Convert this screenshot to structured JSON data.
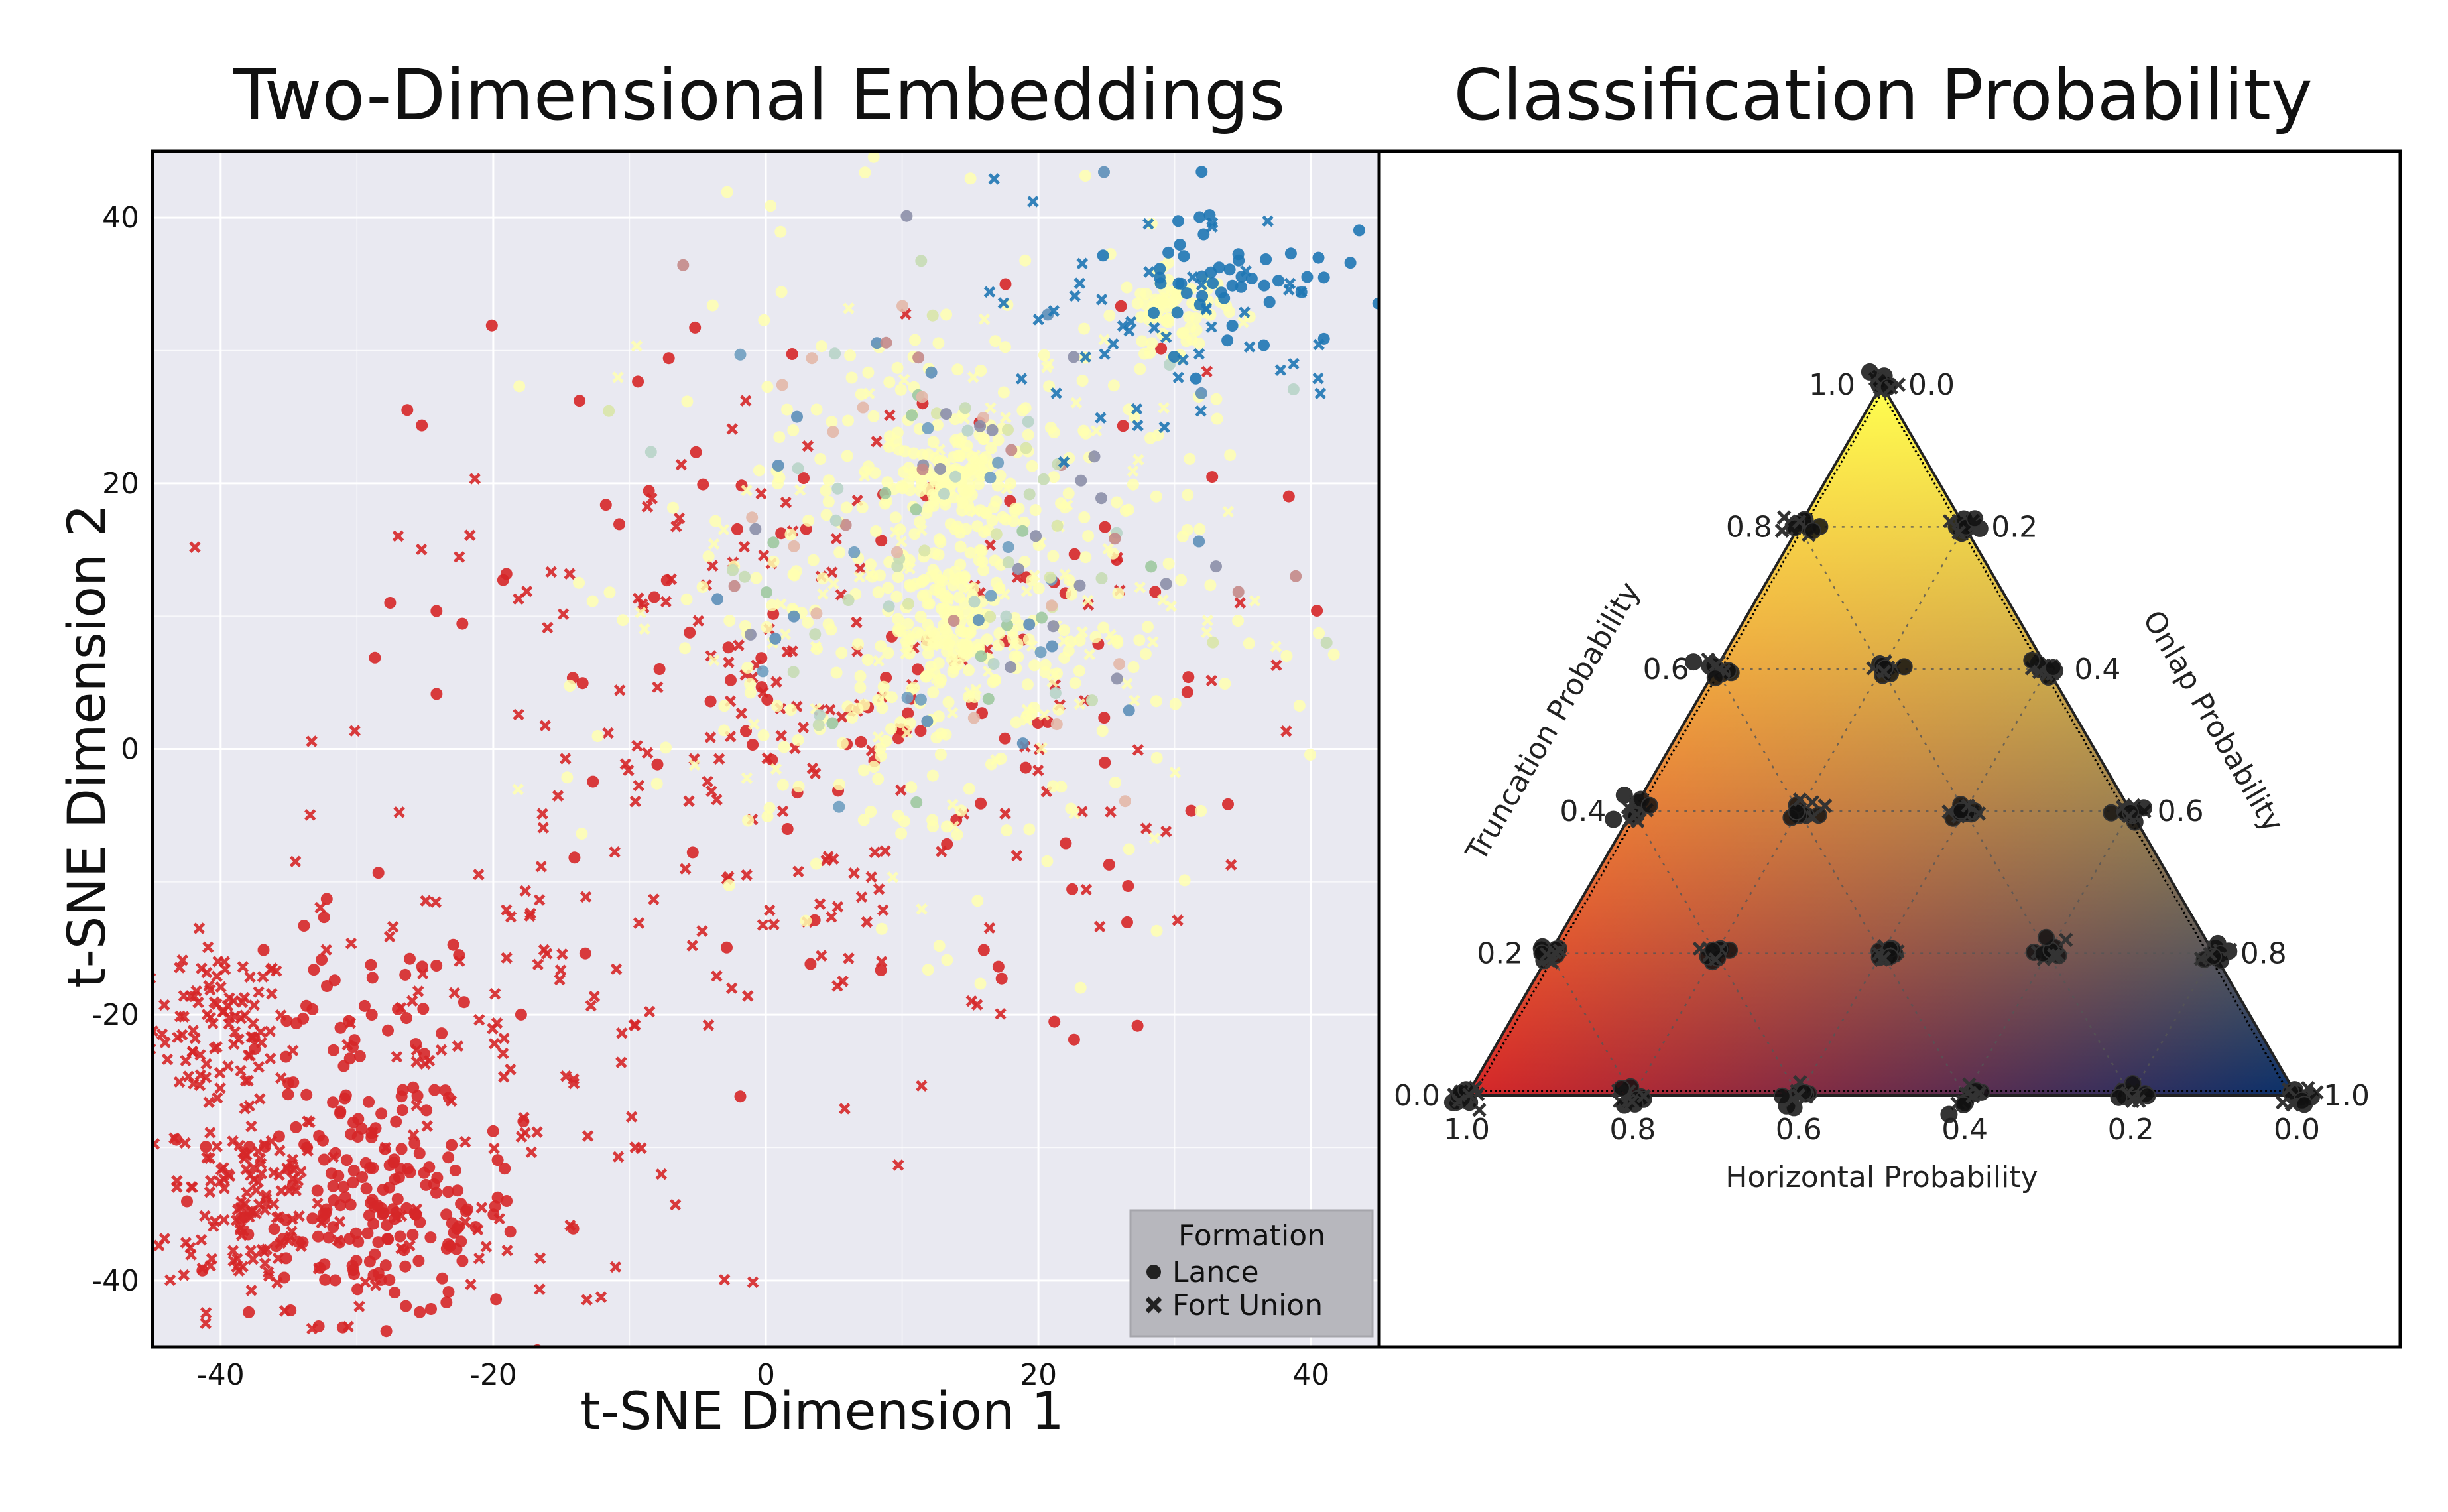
{
  "chart_data": [
    {
      "type": "scatter",
      "title": "Two-Dimensional Embeddings",
      "xlabel": "t-SNE Dimension 1",
      "ylabel": "t-SNE Dimension 2",
      "xlim": [
        -45,
        45
      ],
      "ylim": [
        -45,
        45
      ],
      "xticks": [
        -40,
        -20,
        0,
        20,
        40
      ],
      "yticks": [
        -40,
        -20,
        0,
        20,
        40
      ],
      "grid": true,
      "legend": {
        "title": "Formation",
        "placement": "bottom-right",
        "entries": [
          {
            "name": "Lance",
            "marker": "circle"
          },
          {
            "name": "Fort Union",
            "marker": "x"
          }
        ]
      },
      "colors": {
        "truncation": "#d62728",
        "horizontal": "#ffffb0",
        "onlap": "#1f77b4",
        "plot_background": "#e9e9f1",
        "grid": "#ffffff"
      },
      "clusters": [
        {
          "formation": "Fort Union",
          "class": "truncation",
          "center": [
            -40,
            -21
          ],
          "spread": [
            2.5,
            3
          ],
          "count": 90
        },
        {
          "formation": "Fort Union",
          "class": "truncation",
          "center": [
            -38,
            -34
          ],
          "spread": [
            3,
            4
          ],
          "count": 130
        },
        {
          "formation": "Lance",
          "class": "truncation",
          "center": [
            -28,
            -35
          ],
          "spread": [
            5,
            4
          ],
          "count": 170
        },
        {
          "formation": "Lance",
          "class": "truncation",
          "center": [
            -30,
            -24
          ],
          "spread": [
            5,
            6
          ],
          "count": 70
        },
        {
          "formation": "Fort Union",
          "class": "truncation",
          "center": [
            -20,
            -25
          ],
          "spread": [
            8,
            9
          ],
          "count": 100
        },
        {
          "formation": "Fort Union",
          "class": "truncation",
          "center": [
            0,
            0
          ],
          "spread": [
            16,
            14
          ],
          "count": 200
        },
        {
          "formation": "Lance",
          "class": "truncation",
          "center": [
            5,
            5
          ],
          "spread": [
            15,
            14
          ],
          "count": 120
        },
        {
          "formation": "Lance",
          "class": "horizontal",
          "center": [
            14,
            20
          ],
          "spread": [
            2,
            2
          ],
          "count": 110
        },
        {
          "formation": "Lance",
          "class": "horizontal",
          "center": [
            14,
            9
          ],
          "spread": [
            2.5,
            2.5
          ],
          "count": 110
        },
        {
          "formation": "Lance",
          "class": "horizontal",
          "center": [
            30,
            33
          ],
          "spread": [
            2,
            1.5
          ],
          "count": 70
        },
        {
          "formation": "Lance",
          "class": "horizontal",
          "center": [
            12,
            12
          ],
          "spread": [
            10,
            12
          ],
          "count": 380
        },
        {
          "formation": "Fort Union",
          "class": "horizontal",
          "center": [
            15,
            12
          ],
          "spread": [
            10,
            10
          ],
          "count": 110
        },
        {
          "formation": "Lance",
          "class": "mixed",
          "center": [
            15,
            15
          ],
          "spread": [
            10,
            10
          ],
          "count": 140
        },
        {
          "formation": "Lance",
          "class": "onlap",
          "center": [
            34,
            36
          ],
          "spread": [
            4,
            3
          ],
          "count": 50
        },
        {
          "formation": "Fort Union",
          "class": "onlap",
          "center": [
            28,
            32
          ],
          "spread": [
            8,
            5
          ],
          "count": 50
        }
      ]
    },
    {
      "type": "ternary",
      "title": "Classification Probability",
      "axes": {
        "a": {
          "title": "Truncation Probability",
          "side": "left"
        },
        "b": {
          "title": "Horizontal Probability",
          "side": "bottom"
        },
        "c": {
          "title": "Onlap Probability",
          "side": "right"
        }
      },
      "left_tick_labels": [
        "0.0",
        "0.2",
        "0.4",
        "0.6",
        "0.8",
        "1.0"
      ],
      "right_tick_labels": [
        "0.0",
        "0.2",
        "0.4",
        "0.6",
        "0.8",
        "1.0"
      ],
      "bottom_tick_labels": [
        "1.0",
        "0.8",
        "0.6",
        "0.4",
        "0.2",
        "0.0"
      ],
      "tick_values": [
        0.0,
        0.2,
        0.4,
        0.6,
        0.8,
        1.0
      ],
      "vertex_colors": {
        "truncation": "#d62728",
        "horizontal": "#ffff50",
        "onlap": "#08306b"
      },
      "point_clusters": [
        {
          "truncation": 0.0,
          "horizontal": 1.0,
          "onlap": 0.0
        },
        {
          "truncation": 0.2,
          "horizontal": 0.8,
          "onlap": 0.0
        },
        {
          "truncation": 0.4,
          "horizontal": 0.6,
          "onlap": 0.0
        },
        {
          "truncation": 0.6,
          "horizontal": 0.4,
          "onlap": 0.0
        },
        {
          "truncation": 0.8,
          "horizontal": 0.2,
          "onlap": 0.0
        },
        {
          "truncation": 1.0,
          "horizontal": 0.0,
          "onlap": 0.0
        },
        {
          "truncation": 0.0,
          "horizontal": 0.8,
          "onlap": 0.2
        },
        {
          "truncation": 0.0,
          "horizontal": 0.6,
          "onlap": 0.4
        },
        {
          "truncation": 0.0,
          "horizontal": 0.4,
          "onlap": 0.6
        },
        {
          "truncation": 0.0,
          "horizontal": 0.2,
          "onlap": 0.8
        },
        {
          "truncation": 0.0,
          "horizontal": 0.0,
          "onlap": 1.0
        },
        {
          "truncation": 0.2,
          "horizontal": 0.0,
          "onlap": 0.8
        },
        {
          "truncation": 0.4,
          "horizontal": 0.0,
          "onlap": 0.6
        },
        {
          "truncation": 0.6,
          "horizontal": 0.0,
          "onlap": 0.4
        },
        {
          "truncation": 0.8,
          "horizontal": 0.0,
          "onlap": 0.2
        },
        {
          "truncation": 0.2,
          "horizontal": 0.6,
          "onlap": 0.2
        },
        {
          "truncation": 0.2,
          "horizontal": 0.4,
          "onlap": 0.4
        },
        {
          "truncation": 0.2,
          "horizontal": 0.2,
          "onlap": 0.6
        },
        {
          "truncation": 0.4,
          "horizontal": 0.4,
          "onlap": 0.2
        },
        {
          "truncation": 0.4,
          "horizontal": 0.2,
          "onlap": 0.4
        },
        {
          "truncation": 0.6,
          "horizontal": 0.2,
          "onlap": 0.2
        }
      ]
    }
  ]
}
